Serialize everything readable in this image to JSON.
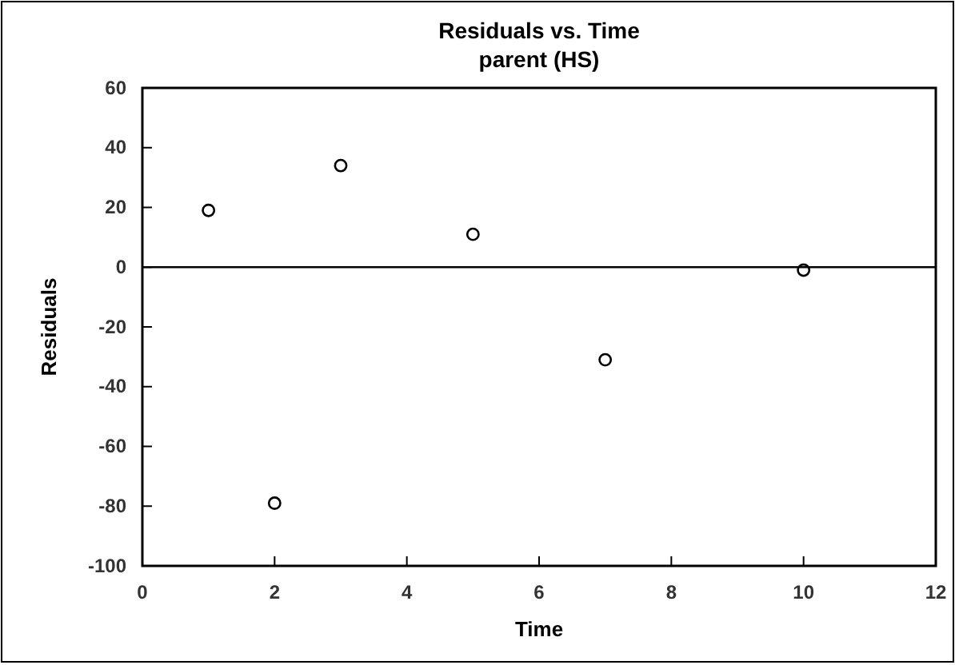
{
  "chart_data": {
    "type": "scatter",
    "title": "Residuals vs. Time",
    "subtitle": "parent (HS)",
    "xlabel": "Time",
    "ylabel": "Residuals",
    "x": [
      1,
      2,
      3,
      5,
      7,
      10
    ],
    "values": [
      19,
      -79,
      34,
      11,
      -31,
      -1
    ],
    "color": "#000000",
    "marker": "circle",
    "xlim": [
      0,
      12
    ],
    "xticks": [
      0,
      2,
      4,
      6,
      8,
      10,
      12
    ],
    "ylim": [
      -100,
      60
    ],
    "yticks": [
      -100,
      -80,
      -60,
      -40,
      -20,
      0,
      20,
      40,
      60
    ],
    "ref_lines": [
      {
        "axis": "y",
        "value": 0,
        "color": "#000000"
      }
    ],
    "tick_labels": "xy"
  }
}
